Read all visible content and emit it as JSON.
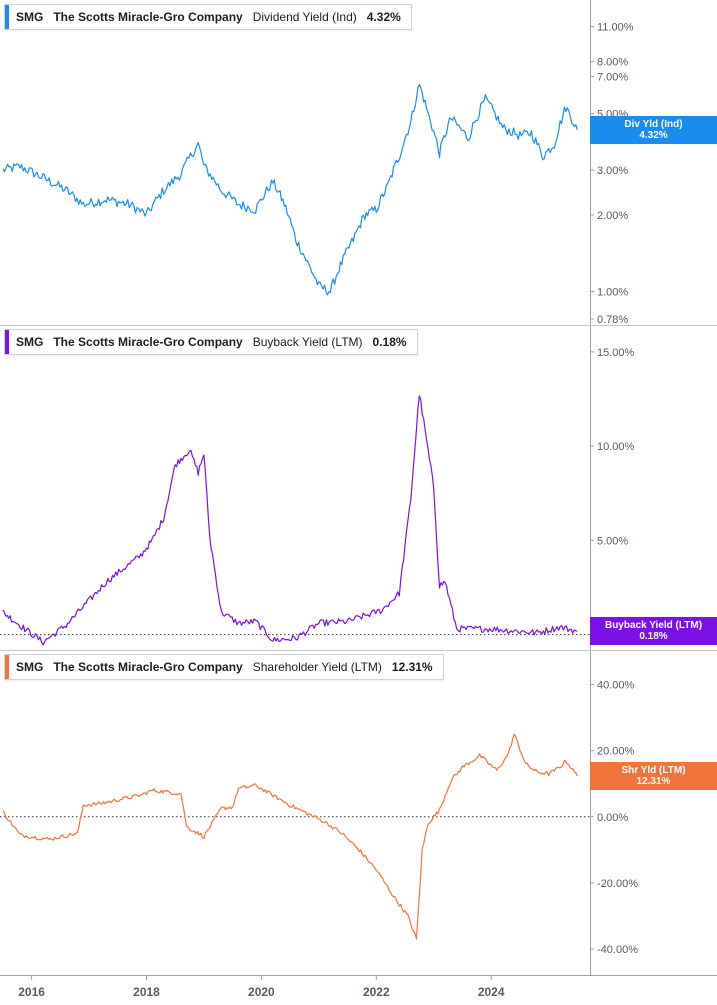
{
  "chart_data": [
    {
      "type": "line",
      "ticker": "SMG",
      "company": "The Scotts Miracle-Gro Company",
      "metric": "Dividend Yield (Ind)",
      "current_value": "4.32%",
      "end_label": {
        "name": "Div Yld (Ind)",
        "value": "4.32%"
      },
      "color": "#1a8cf0",
      "scale": "log",
      "ylim": [
        0.78,
        13
      ],
      "yticks": [
        {
          "v": 11,
          "label": "11.00%"
        },
        {
          "v": 8,
          "label": "8.00%"
        },
        {
          "v": 7,
          "label": "7.00%"
        },
        {
          "v": 5,
          "label": "5.00%"
        },
        {
          "v": 3,
          "label": "3.00%"
        },
        {
          "v": 2,
          "label": "2.00%"
        },
        {
          "v": 1,
          "label": "1.00%"
        },
        {
          "v": 0.78,
          "label": "0.78%"
        }
      ],
      "x": [
        2015.5,
        2015.8,
        2016.2,
        2016.6,
        2016.9,
        2017.3,
        2017.7,
        2018.0,
        2018.3,
        2018.6,
        2018.9,
        2019.0,
        2019.3,
        2019.6,
        2019.9,
        2020.2,
        2020.4,
        2020.6,
        2020.8,
        2021.0,
        2021.2,
        2021.4,
        2021.6,
        2021.8,
        2022.0,
        2022.2,
        2022.4,
        2022.6,
        2022.75,
        2022.9,
        2023.1,
        2023.3,
        2023.6,
        2023.9,
        2024.2,
        2024.5,
        2024.7,
        2024.9,
        2025.1,
        2025.3,
        2025.5
      ],
      "values": [
        3.0,
        3.1,
        2.8,
        2.5,
        2.2,
        2.3,
        2.2,
        2.0,
        2.5,
        2.9,
        3.8,
        3.1,
        2.5,
        2.2,
        2.1,
        2.7,
        2.2,
        1.6,
        1.3,
        1.05,
        1.0,
        1.3,
        1.6,
        2.0,
        2.1,
        2.6,
        3.4,
        4.6,
        6.5,
        5.0,
        3.5,
        4.8,
        4.0,
        5.7,
        4.4,
        4.1,
        4.2,
        3.4,
        3.8,
        5.3,
        4.32
      ],
      "baseline": null
    },
    {
      "type": "line",
      "ticker": "SMG",
      "company": "The Scotts Miracle-Gro Company",
      "metric": "Buyback Yield (LTM)",
      "current_value": "0.18%",
      "end_label": {
        "name": "Buyback Yield (LTM)",
        "value": "0.18%"
      },
      "color": "#7a12e8",
      "scale": "linear",
      "ylim": [
        -0.5,
        16
      ],
      "yticks": [
        {
          "v": 15,
          "label": "15.00%"
        },
        {
          "v": 10,
          "label": "10.00%"
        },
        {
          "v": 5,
          "label": "5.00%"
        }
      ],
      "x": [
        2015.5,
        2015.75,
        2016.2,
        2016.6,
        2017.0,
        2017.3,
        2017.6,
        2017.9,
        2018.1,
        2018.3,
        2018.5,
        2018.75,
        2018.9,
        2019.0,
        2019.1,
        2019.3,
        2019.6,
        2019.9,
        2020.2,
        2020.6,
        2021.0,
        2021.5,
        2021.8,
        2022.1,
        2022.4,
        2022.6,
        2022.75,
        2022.9,
        2023.0,
        2023.1,
        2023.2,
        2023.4,
        2023.7,
        2024.0,
        2024.4,
        2024.8,
        2025.2,
        2025.5
      ],
      "values": [
        1.2,
        0.6,
        -0.4,
        0.5,
        1.8,
        2.8,
        3.5,
        4.2,
        5.0,
        6.2,
        9.0,
        9.8,
        8.6,
        9.6,
        5.2,
        1.2,
        0.6,
        0.7,
        -0.3,
        -0.2,
        0.6,
        0.7,
        1.0,
        1.3,
        2.2,
        7.2,
        12.8,
        9.8,
        7.8,
        2.6,
        2.8,
        0.3,
        0.3,
        0.3,
        0.2,
        0.1,
        0.4,
        0.18
      ],
      "baseline": 0
    },
    {
      "type": "line",
      "ticker": "SMG",
      "company": "The Scotts Miracle-Gro Company",
      "metric": "Shareholder Yield (LTM)",
      "current_value": "12.31%",
      "end_label": {
        "name": "Shr Yld (LTM)",
        "value": "12.31%"
      },
      "color": "#f0743c",
      "scale": "linear",
      "ylim": [
        -46,
        48
      ],
      "yticks": [
        {
          "v": 40,
          "label": "40.00%"
        },
        {
          "v": 20,
          "label": "20.00%"
        },
        {
          "v": 0,
          "label": "0.00%"
        },
        {
          "v": -20,
          "label": "-20.00%"
        },
        {
          "v": -40,
          "label": "-40.00%"
        }
      ],
      "x": [
        2015.5,
        2015.8,
        2016.3,
        2016.8,
        2016.9,
        2017.2,
        2017.6,
        2017.9,
        2018.1,
        2018.6,
        2018.7,
        2019.0,
        2019.3,
        2019.5,
        2019.6,
        2019.9,
        2020.2,
        2020.5,
        2020.8,
        2021.1,
        2021.4,
        2021.7,
        2022.0,
        2022.3,
        2022.55,
        2022.7,
        2022.8,
        2022.9,
        2023.1,
        2023.3,
        2023.5,
        2023.8,
        2024.1,
        2024.3,
        2024.4,
        2024.6,
        2024.8,
        2025.0,
        2025.2,
        2025.3,
        2025.5
      ],
      "values": [
        1.5,
        -5.5,
        -6.8,
        -5.0,
        3.5,
        4.0,
        5.5,
        6.5,
        8.0,
        7.0,
        -3.0,
        -6.0,
        2.5,
        3.0,
        8.5,
        9.5,
        6.5,
        3.5,
        1.0,
        -1.5,
        -5.0,
        -10.0,
        -16.0,
        -24.0,
        -30.0,
        -37.0,
        -10.0,
        -2.0,
        2.0,
        11.0,
        15.0,
        18.5,
        14.0,
        19.0,
        25.0,
        16.0,
        13.5,
        13.0,
        15.0,
        17.0,
        12.31
      ],
      "baseline": 0
    }
  ],
  "x_axis": {
    "ticks": [
      {
        "v": 2016,
        "label": "2016"
      },
      {
        "v": 2018,
        "label": "2018"
      },
      {
        "v": 2020,
        "label": "2020"
      },
      {
        "v": 2022,
        "label": "2022"
      },
      {
        "v": 2024,
        "label": "2024"
      }
    ],
    "xlim": [
      2015.45,
      2025.72
    ]
  }
}
